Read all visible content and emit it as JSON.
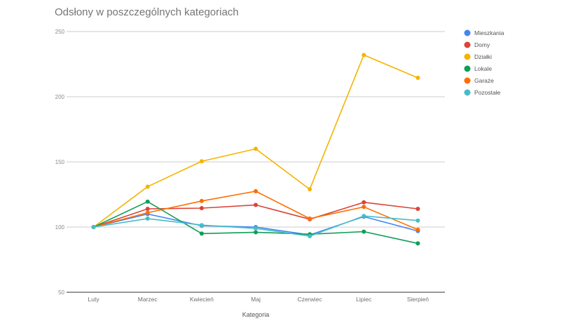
{
  "chart_data": {
    "type": "line",
    "title": "Odsłony w poszczególnych kategoriach",
    "xlabel": "Kategoria",
    "ylabel": "",
    "categories": [
      "Luty",
      "Marzec",
      "Kwiecień",
      "Maj",
      "Czerwiec",
      "Lipiec",
      "Sierpień"
    ],
    "ylim": [
      50,
      250
    ],
    "yticks": [
      "50",
      "100",
      "150",
      "200",
      "250"
    ],
    "grid": true,
    "legend_position": "right",
    "series": [
      {
        "name": "Mieszkania",
        "color": "#4285f4",
        "values": [
          100,
          110,
          101,
          100,
          94,
          108,
          97
        ]
      },
      {
        "name": "Domy",
        "color": "#db4437",
        "values": [
          100,
          114,
          114.5,
          117,
          106,
          119,
          114
        ]
      },
      {
        "name": "Działki",
        "color": "#f4b400",
        "values": [
          100,
          131,
          150.5,
          160,
          129,
          232,
          214.5
        ]
      },
      {
        "name": "Lokale",
        "color": "#0f9d58",
        "values": [
          100,
          119.5,
          95,
          96,
          94.5,
          96.5,
          87.5
        ]
      },
      {
        "name": "Garaże",
        "color": "#ff6d00",
        "values": [
          100,
          111,
          120,
          127.5,
          106.5,
          115.5,
          98
        ]
      },
      {
        "name": "Pozostałe",
        "color": "#46bdc6",
        "values": [
          100,
          106.5,
          101.5,
          99,
          93,
          108.5,
          105
        ]
      }
    ]
  }
}
